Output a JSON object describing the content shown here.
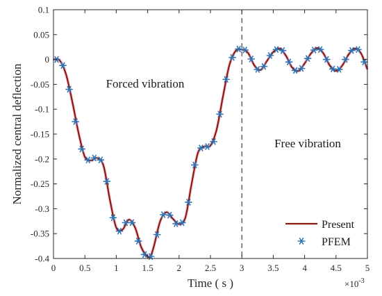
{
  "chart_data": {
    "type": "line",
    "xlabel": "Time ( s )",
    "ylabel": "Normalized central deflection",
    "x_multiplier": "×10",
    "x_multiplier_exp": "-3",
    "xlim": [
      0,
      5
    ],
    "ylim": [
      -0.4,
      0.1
    ],
    "xticks": [
      "0",
      "0.5",
      "1",
      "1.5",
      "2",
      "2.5",
      "3",
      "3.5",
      "4",
      "4.5",
      "5"
    ],
    "yticks": [
      "0.1",
      "0.05",
      "0",
      "-0.05",
      "-0.1",
      "-0.15",
      "-0.2",
      "-0.25",
      "-0.3",
      "-0.35",
      "-0.4"
    ],
    "grid": false,
    "legend_position": "bottom-right",
    "annotations": [
      {
        "text": "Forced vibration",
        "x": 1.75,
        "y": -0.026
      },
      {
        "text": "Free vibration",
        "x": 4.05,
        "y": -0.086
      }
    ],
    "vline": {
      "x": 3.0,
      "style": "dashed"
    },
    "series": [
      {
        "name": "Present",
        "style": "line",
        "color": "#8B1A0E",
        "x": [
          0,
          0.1,
          0.2,
          0.3,
          0.4,
          0.5,
          0.6,
          0.7,
          0.8,
          0.9,
          1.0,
          1.1,
          1.2,
          1.3,
          1.4,
          1.5,
          1.55,
          1.6,
          1.7,
          1.8,
          1.9,
          2.0,
          2.1,
          2.2,
          2.3,
          2.4,
          2.5,
          2.6,
          2.7,
          2.8,
          2.9,
          3.0,
          3.1,
          3.2,
          3.3,
          3.4,
          3.5,
          3.6,
          3.7,
          3.8,
          3.9,
          4.0,
          4.1,
          4.2,
          4.3,
          4.4,
          4.5,
          4.6,
          4.7,
          4.8,
          4.9,
          5.0
        ],
        "y": [
          0,
          -0.002,
          -0.03,
          -0.085,
          -0.148,
          -0.196,
          -0.203,
          -0.198,
          -0.215,
          -0.283,
          -0.338,
          -0.342,
          -0.322,
          -0.338,
          -0.378,
          -0.396,
          -0.394,
          -0.375,
          -0.325,
          -0.307,
          -0.32,
          -0.331,
          -0.318,
          -0.25,
          -0.188,
          -0.175,
          -0.173,
          -0.14,
          -0.074,
          -0.012,
          0.017,
          0.02,
          0.013,
          -0.012,
          -0.021,
          -0.003,
          0.015,
          0.022,
          0.008,
          -0.016,
          -0.023,
          -0.008,
          0.012,
          0.023,
          0.012,
          -0.012,
          -0.023,
          -0.012,
          0.01,
          0.022,
          0.012,
          -0.02
        ]
      },
      {
        "name": "PFEM",
        "style": "marker",
        "color": "#2E75B6",
        "x": [
          0.05,
          0.15,
          0.25,
          0.35,
          0.45,
          0.55,
          0.65,
          0.75,
          0.85,
          0.95,
          1.05,
          1.15,
          1.25,
          1.35,
          1.45,
          1.55,
          1.65,
          1.75,
          1.85,
          1.95,
          2.05,
          2.15,
          2.25,
          2.35,
          2.45,
          2.55,
          2.65,
          2.75,
          2.85,
          2.95,
          3.05,
          3.15,
          3.25,
          3.35,
          3.45,
          3.55,
          3.65,
          3.75,
          3.85,
          3.95,
          4.05,
          4.15,
          4.25,
          4.35,
          4.45,
          4.55,
          4.65,
          4.75,
          4.85,
          4.95
        ],
        "y": [
          0,
          -0.012,
          -0.06,
          -0.125,
          -0.18,
          -0.202,
          -0.198,
          -0.202,
          -0.245,
          -0.318,
          -0.345,
          -0.328,
          -0.328,
          -0.365,
          -0.392,
          -0.396,
          -0.352,
          -0.312,
          -0.313,
          -0.33,
          -0.328,
          -0.287,
          -0.212,
          -0.178,
          -0.175,
          -0.165,
          -0.11,
          -0.04,
          0.004,
          0.021,
          0.019,
          0.001,
          -0.02,
          -0.014,
          0.008,
          0.02,
          0.018,
          -0.005,
          -0.022,
          -0.018,
          0.002,
          0.019,
          0.02,
          0.0,
          -0.019,
          -0.02,
          0.0,
          0.018,
          0.02,
          -0.005
        ]
      }
    ]
  }
}
